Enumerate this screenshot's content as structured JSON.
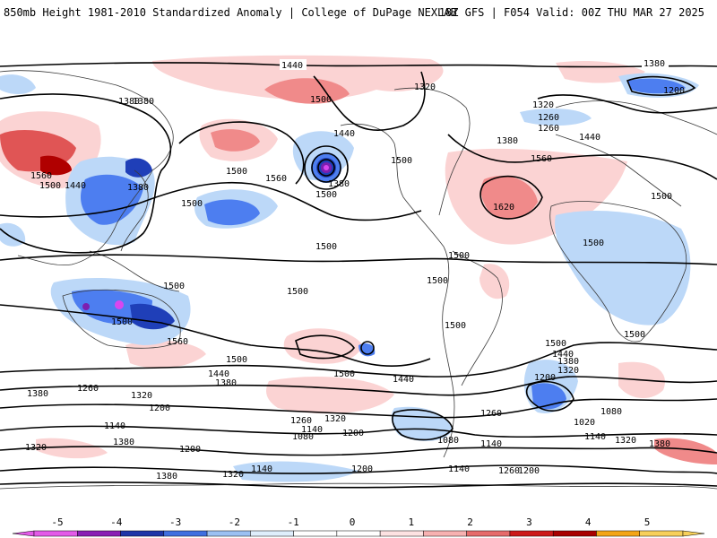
{
  "header": {
    "title": "850mb Height 1981-2010 Standardized Anomaly | College of DuPage NEXLAB",
    "run_info": "18Z GFS | F054 Valid: 00Z THU MAR 27 2025"
  },
  "colors": {
    "anom_neg_5": "#d946ef",
    "anom_neg_4": "#7c1fb0",
    "anom_neg_3": "#1f3fb8",
    "anom_neg_2": "#4d7ef0",
    "anom_neg_1": "#bcd8f8",
    "anom_pos_1": "#fbd3d3",
    "anom_pos_2": "#f08a8a",
    "anom_pos_3": "#d21a1a",
    "anom_pos_4": "#b00000",
    "anom_pos_5": "#f5a000"
  },
  "contour_labels": [
    "1440",
    "1380",
    "1500",
    "1320",
    "1200",
    "1380",
    "1260",
    "1320",
    "1260",
    "1440",
    "1560",
    "1380",
    "1380",
    "1500",
    "1440",
    "1560",
    "1380",
    "1500",
    "1440",
    "1500",
    "1500",
    "1560",
    "1500",
    "1380",
    "1500",
    "1620",
    "1500",
    "1500",
    "1500",
    "1500",
    "1500",
    "1500",
    "1500",
    "1500",
    "1500",
    "1560",
    "1500",
    "1440",
    "1380",
    "1500",
    "1440",
    "1500",
    "1440",
    "1380",
    "1320",
    "1380",
    "1260",
    "1320",
    "1200",
    "1320",
    "1260",
    "1080",
    "1200",
    "1140",
    "1200",
    "1260",
    "1140",
    "1020",
    "1080",
    "1140",
    "1320",
    "1380",
    "1140",
    "1080",
    "1380",
    "1200",
    "1320",
    "1140",
    "1200",
    "1260",
    "1380",
    "1320",
    "1140",
    "1200"
  ],
  "colorbar": {
    "ticks": [
      "-5",
      "-4",
      "-3",
      "-2",
      "-1",
      "0",
      "1",
      "2",
      "3",
      "4",
      "5"
    ],
    "segment_colors": [
      "#e35be8",
      "#8a1fb4",
      "#1e36a8",
      "#3f6fe0",
      "#9bc0f2",
      "#dfeefc",
      "#ffffff",
      "#ffffff",
      "#fde2e2",
      "#f7b1b1",
      "#e56b6b",
      "#cc1a1a",
      "#a80000",
      "#f3a516",
      "#f7d05a"
    ]
  }
}
